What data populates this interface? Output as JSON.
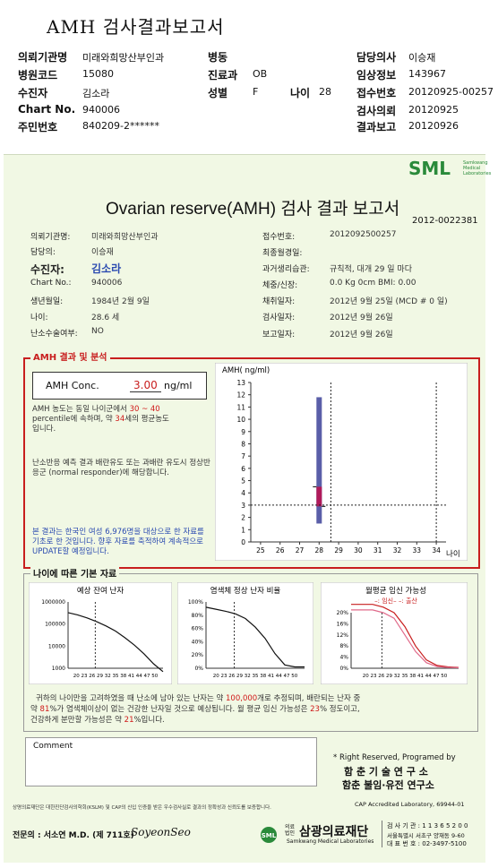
{
  "header": {
    "title": "AMH 검사결과보고서",
    "fields": [
      {
        "label": "의뢰기관명",
        "value": "미래와희망산부인과"
      },
      {
        "label": "병원코드",
        "value": "15080"
      },
      {
        "label": "수진자",
        "value": "김소라"
      },
      {
        "label": "Chart No.",
        "value": "940006"
      },
      {
        "label": "주민번호",
        "value": "840209-2******"
      },
      {
        "label": "병동",
        "value": ""
      },
      {
        "label": "진료과",
        "value": "OB"
      },
      {
        "label": "성별",
        "value": "F"
      },
      {
        "label": "나이",
        "value": "28"
      },
      {
        "label": "담당의사",
        "value": "이승재"
      },
      {
        "label": "임상정보",
        "value": "143967"
      },
      {
        "label": "접수번호",
        "value": "20120925-00257"
      },
      {
        "label": "검사의뢰",
        "value": "20120925"
      },
      {
        "label": "결과보고",
        "value": "20120926"
      }
    ]
  },
  "report": {
    "logo": "SML",
    "logo_sub": "Samkwang Medical Laboratories",
    "title": "Ovarian reserve(AMH) 검사 결과 보고서",
    "report_no": "2012-0022381",
    "left_info": [
      {
        "label": "의뢰기관명:",
        "value": "미래와희망산부인과"
      },
      {
        "label": "담당의:",
        "value": "이승재"
      },
      {
        "label": "수진자:",
        "value": "김소라"
      },
      {
        "label": "Chart No.:",
        "value": "940006"
      },
      {
        "label": "생년월일:",
        "value": "1984년 2월 9일"
      },
      {
        "label": "나이:",
        "value": "28.6 세"
      },
      {
        "label": "난소수술여부:",
        "value": "NO"
      }
    ],
    "right_info": [
      {
        "label": "접수번호:",
        "value": "2012092500257"
      },
      {
        "label": "최종월경일:",
        "value": ""
      },
      {
        "label": "과거생리습관:",
        "value": "규칙적, 대개  29 일 마다"
      },
      {
        "label": "체중/신장:",
        "value": "0.0 Kg      0cm   BMI:  0.00"
      },
      {
        "label": "채취일자:",
        "value": "2012년 9월 25일   (MCD #  0 일)"
      },
      {
        "label": "검사일자:",
        "value": "2012년 9월 26일"
      },
      {
        "label": "보고일자:",
        "value": "2012년 9월 26일"
      }
    ],
    "amh_section": {
      "heading": "AMH 결과 및 분석",
      "conc_label": "AMH Conc.",
      "conc_value": "3.00",
      "conc_unit": "ng/ml",
      "desc1_a": "AMH 농도는 동일 나이군에서",
      "desc1_pct": "30 ~ 40",
      "desc1_b": "percentile에 속하며, 약",
      "desc1_age": "34",
      "desc1_c": "세의 평균농도",
      "desc1_d": "입니다.",
      "desc2": "난소반응 예측 결과 배란유도 또는 과배란 유도시 정상반응군 (normal responder)에 해당합니다.",
      "desc3": "본 결과는 한국인 여성 6,976명을 대상으로 한 자료를 기초로 한 것입니다. 향후 자료를 축적하여 계속적으로 UPDATE할 예정입니다."
    },
    "age_section": {
      "heading": "나이에 따른 기본 자료",
      "chart1_title": "예상 잔여 난자",
      "chart2_title": "염색체 정상 난자 비율",
      "chart3_title": "월평균 임신 가능성",
      "chart3_legend_a": "–: 임신–",
      "chart3_legend_b": "–: 출산",
      "summary_a": "귀하의 나이만을 고려하였을 때 난소에 남아 있는 난자는 약",
      "summary_eggs": "100,000",
      "summary_b": "개로 추정되며, 배란되는 난자 중",
      "summary_c": "약",
      "summary_normal": "81",
      "summary_d": "%가 염색체이상이 없는 건강한 난자일 것으로 예상됩니다. 월 평균 임신 가능성은",
      "summary_preg": "23",
      "summary_e": "% 정도이고,",
      "summary_f": "건강하게 분만할 가능성은 약",
      "summary_birth": "21",
      "summary_g": "%입니다."
    },
    "comment_label": "Comment",
    "rights_1": "* Right Reserved, Programed by",
    "rights_2": "함 춘 기 술 연 구 소",
    "rights_3": "함춘 불임·유전 연구소",
    "cap": "CAP  Accredited  Laboratory,  69944-01",
    "footnote": "상명의료재단은 대한진단검사의학회(KSLM) 및 CAP의 신입 인증을 받은 우수검사실로 결과의 정확성과 신뢰도를 보증합니다.",
    "specialist_label": "전문의 : 서소연 M.D. (제 711호)",
    "signature": "SoyeonSeo",
    "foundation": "삼광의료재단",
    "foundation_sub": "Samkwang Medical Laboratories",
    "foundation_prefix": "의료법인",
    "contact_1": "검 사 기 관 : 1 1 3 6 5 2 0 0",
    "contact_2": "서울특별시 서초구 양재동 9-60",
    "contact_3": "대 표 번 호 : 02-3497-5100"
  },
  "chart_data": [
    {
      "type": "bar",
      "title": "",
      "ylabel": "AMH( ng/ml)",
      "xlabel": "나이",
      "x": [
        25,
        26,
        27,
        28,
        29,
        30,
        31,
        32,
        33,
        34
      ],
      "ylim": [
        0,
        13
      ],
      "yticks": [
        0,
        1,
        2,
        3,
        4,
        5,
        6,
        7,
        8,
        9,
        10,
        11,
        12,
        13
      ],
      "range_bar": {
        "age": 28,
        "low": 1.5,
        "high": 11.8
      },
      "iqr_box": {
        "age": 28,
        "low": 2.9,
        "high": 4.5
      },
      "patient": {
        "age": 28.6,
        "value": 3.0
      },
      "cutoff_age": 34
    },
    {
      "type": "line",
      "title": "예상 잔여 난자",
      "yscale": "log",
      "yticks": [
        "1000000",
        "100000",
        "10000",
        "1000"
      ],
      "x": [
        20,
        23,
        26,
        29,
        32,
        35,
        38,
        41,
        44,
        47,
        50
      ],
      "values": [
        330000,
        260000,
        190000,
        130000,
        82000,
        48000,
        24000,
        11000,
        4500,
        1600,
        700
      ],
      "marker_age": 28.6
    },
    {
      "type": "line",
      "title": "염색체 정상 난자 비율",
      "yticks": [
        "100%",
        "80%",
        "60%",
        "40%",
        "20%",
        "0%"
      ],
      "x": [
        20,
        23,
        26,
        29,
        32,
        35,
        38,
        41,
        44,
        47,
        50
      ],
      "values": [
        92,
        89,
        86,
        82,
        75,
        62,
        45,
        22,
        5,
        2,
        2
      ],
      "marker_age": 28.6
    },
    {
      "type": "line",
      "title": "월평균 임신 가능성",
      "yticks": [
        "20%",
        "16%",
        "12%",
        "8%",
        "4%",
        "0%"
      ],
      "x": [
        20,
        23,
        26,
        29,
        32,
        35,
        38,
        41,
        44,
        47,
        50
      ],
      "series": [
        {
          "name": "임신",
          "values": [
            23,
            23,
            23,
            22,
            20,
            15,
            8,
            3,
            1,
            0.5,
            0.3
          ]
        },
        {
          "name": "출산",
          "values": [
            21,
            21,
            21,
            20,
            18,
            12,
            6,
            2,
            0.6,
            0.3,
            0.2
          ]
        }
      ],
      "marker_age": 28.6
    }
  ],
  "colors": {
    "accent_red": "#c81e1e",
    "green": "#2a8a3a",
    "bar_blue": "#5a5ea8",
    "box_magenta": "#b01a5a"
  }
}
